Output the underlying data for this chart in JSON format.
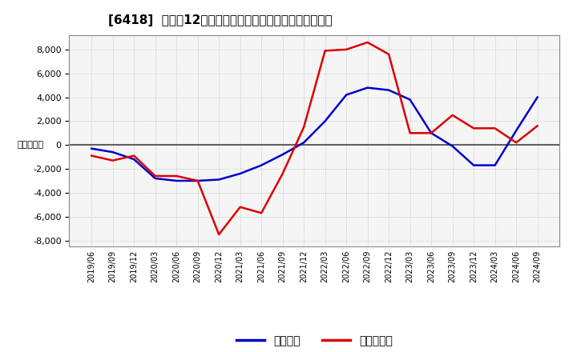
{
  "title": "[6418]  利益の12か月移動合計の対前年同期増減額の推移",
  "ylabel": "（百万円）",
  "ylim": [
    -8500,
    9200
  ],
  "yticks": [
    -8000,
    -6000,
    -4000,
    -2000,
    0,
    2000,
    4000,
    6000,
    8000
  ],
  "legend_labels": [
    "経常利益",
    "当期純利益"
  ],
  "background_color": "#ffffff",
  "grid_color": "#aaaaaa",
  "plot_bg_color": "#f5f5f5",
  "x_labels": [
    "2019/06",
    "2019/09",
    "2019/12",
    "2020/03",
    "2020/06",
    "2020/09",
    "2020/12",
    "2021/03",
    "2021/06",
    "2021/09",
    "2021/12",
    "2022/03",
    "2022/06",
    "2022/09",
    "2022/12",
    "2023/03",
    "2023/06",
    "2023/09",
    "2023/12",
    "2024/03",
    "2024/06",
    "2024/09"
  ],
  "series1_color": "#0000cc",
  "series2_color": "#dd0000",
  "series1_values": [
    -300,
    -600,
    -1200,
    -2800,
    -3000,
    -3000,
    -2900,
    -2400,
    -1700,
    -800,
    200,
    2000,
    4200,
    4800,
    4600,
    3800,
    1000,
    -100,
    -1700,
    -1700,
    1200,
    4000
  ],
  "series2_values": [
    -900,
    -1300,
    -900,
    -2600,
    -2600,
    -3000,
    -7500,
    -5200,
    -5700,
    -2400,
    1500,
    7900,
    8000,
    8600,
    7600,
    1000,
    1000,
    2500,
    1400,
    1400,
    200,
    1600
  ]
}
